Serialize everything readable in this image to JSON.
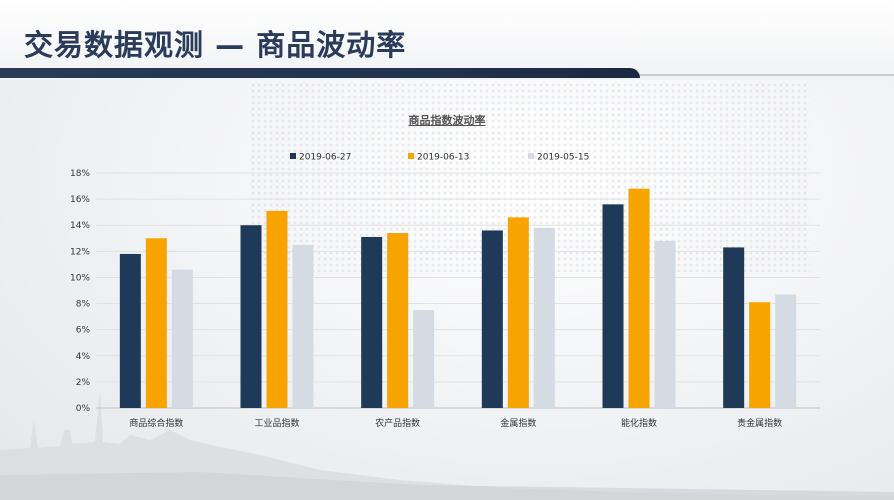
{
  "page": {
    "title": "交易数据观测 — 商品波动率"
  },
  "colors": {
    "header_bar": "#22314c",
    "title": "#2b3b5c",
    "series": [
      "#1f3a58",
      "#f7a300",
      "#d5dbe3"
    ]
  },
  "chart_data": {
    "type": "bar",
    "title": "商品指数波动率",
    "xlabel": "",
    "ylabel": "",
    "categories": [
      "商品综合指数",
      "工业品指数",
      "农产品指数",
      "金属指数",
      "能化指数",
      "贵金属指数"
    ],
    "series": [
      {
        "name": "2019-06-27",
        "values": [
          11.8,
          14.0,
          13.1,
          13.6,
          15.6,
          12.3
        ]
      },
      {
        "name": "2019-06-13",
        "values": [
          13.0,
          15.1,
          13.4,
          14.6,
          16.8,
          8.1
        ]
      },
      {
        "name": "2019-05-15",
        "values": [
          10.6,
          12.5,
          7.5,
          13.8,
          12.8,
          8.7
        ]
      }
    ],
    "ylim": [
      0,
      18
    ],
    "yticks": [
      "0%",
      "2%",
      "4%",
      "6%",
      "8%",
      "10%",
      "12%",
      "14%",
      "16%",
      "18%"
    ],
    "grid": true,
    "legend_position": "top"
  }
}
